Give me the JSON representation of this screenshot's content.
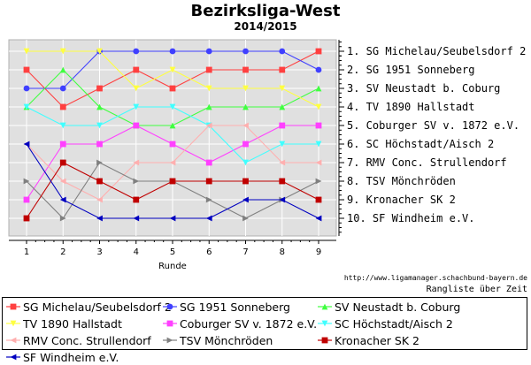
{
  "chart_data": {
    "type": "line",
    "title": "Bezirksliga-West",
    "subtitle": "2014/2015",
    "xlabel": "Runde",
    "x": [
      1,
      2,
      3,
      4,
      5,
      6,
      7,
      8,
      9
    ],
    "y_categories": [
      "1. SG Michelau/Seubelsdorf 2",
      "2. SG 1951 Sonneberg",
      "3. SV Neustadt b. Coburg",
      "4. TV 1890 Hallstadt",
      "5. Coburger SV v. 1872 e.V.",
      "6. SC Höchstadt/Aisch 2",
      "7. RMV Conc. Strullendorf",
      "8. TSV Mönchröden",
      "9. Kronacher SK 2",
      "10. SF Windheim e.V."
    ],
    "y_axis": "rank 1 (top) to 10 (bottom)",
    "grid": true,
    "legend_position": "bottom",
    "series": [
      {
        "name": "SG Michelau/Seubelsdorf 2",
        "color": "#ff4040",
        "marker": "square",
        "values": [
          2,
          4,
          3,
          2,
          3,
          2,
          2,
          2,
          1
        ]
      },
      {
        "name": "SG 1951 Sonneberg",
        "color": "#4040ff",
        "marker": "circle",
        "values": [
          3,
          3,
          1,
          1,
          1,
          1,
          1,
          1,
          2
        ]
      },
      {
        "name": "SV Neustadt b. Coburg",
        "color": "#40ff40",
        "marker": "triangle-up",
        "values": [
          4,
          2,
          4,
          5,
          5,
          4,
          4,
          4,
          3
        ]
      },
      {
        "name": "TV 1890 Hallstadt",
        "color": "#ffff40",
        "marker": "triangle-down",
        "values": [
          1,
          1,
          1,
          3,
          2,
          3,
          3,
          3,
          4
        ]
      },
      {
        "name": "Coburger SV v. 1872 e.V.",
        "color": "#ff40ff",
        "marker": "square",
        "values": [
          9,
          6,
          6,
          5,
          6,
          7,
          6,
          5,
          5
        ]
      },
      {
        "name": "SC Höchstadt/Aisch 2",
        "color": "#40ffff",
        "marker": "triangle-down",
        "values": [
          4,
          5,
          5,
          4,
          4,
          5,
          7,
          6,
          6
        ]
      },
      {
        "name": "RMV Conc. Strullendorf",
        "color": "#ffafaf",
        "marker": "triangle-left",
        "values": [
          6,
          8,
          9,
          7,
          7,
          5,
          5,
          7,
          7
        ]
      },
      {
        "name": "TSV Mönchröden",
        "color": "#808080",
        "marker": "triangle-right",
        "values": [
          8,
          10,
          7,
          8,
          8,
          9,
          10,
          9,
          8
        ]
      },
      {
        "name": "Kronacher SK 2",
        "color": "#c00000",
        "marker": "square",
        "values": [
          10,
          7,
          8,
          9,
          8,
          8,
          8,
          8,
          9
        ]
      },
      {
        "name": "SF Windheim e.V.",
        "color": "#0000c0",
        "marker": "triangle-left",
        "values": [
          6,
          9,
          10,
          10,
          10,
          10,
          9,
          9,
          10
        ]
      }
    ]
  },
  "footer": {
    "source_url": "http://www.ligamanager.schachbund-bayern.de",
    "caption": "Rangliste über Zeit"
  }
}
